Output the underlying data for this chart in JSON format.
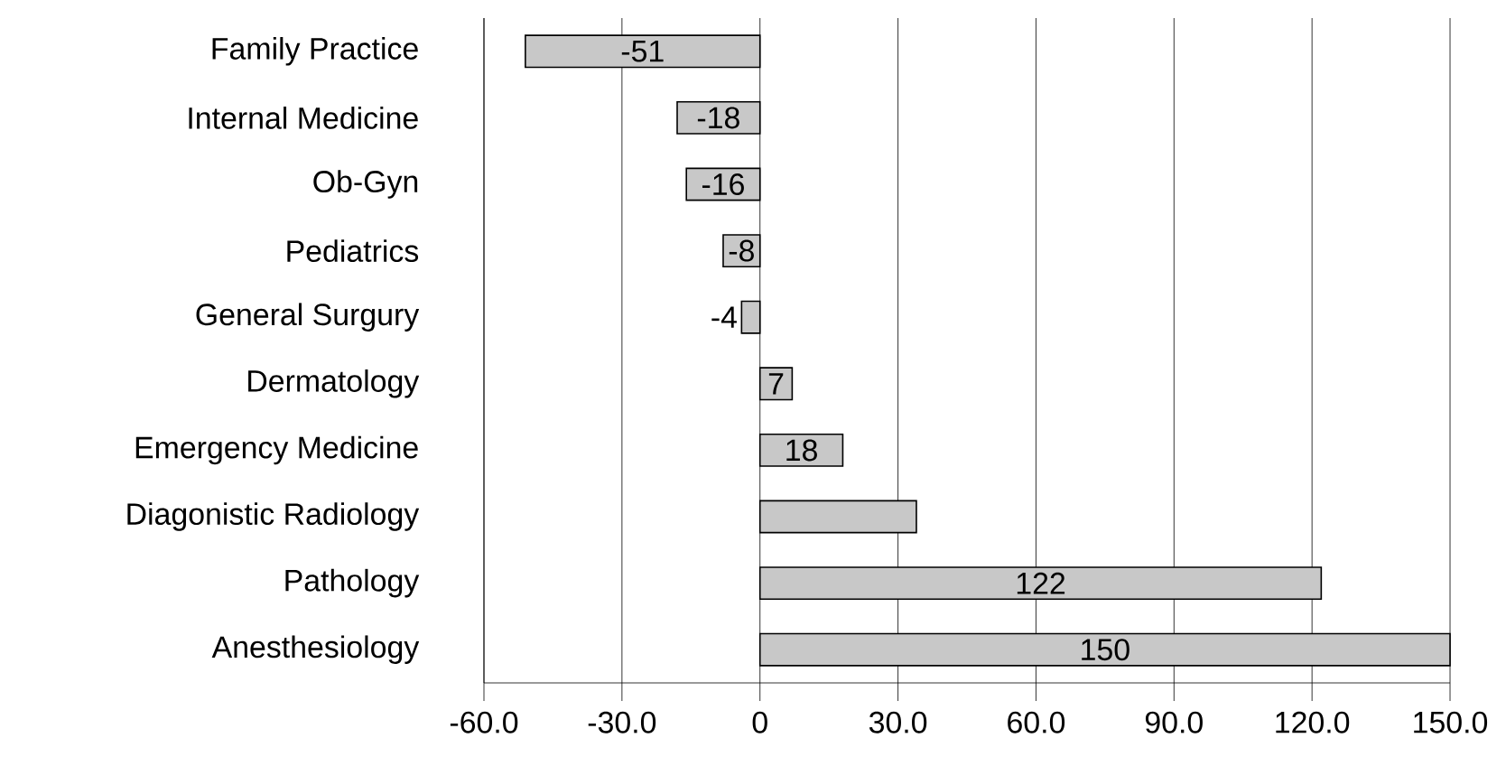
{
  "chart_data": {
    "type": "bar",
    "orientation": "horizontal",
    "categories": [
      "Family Practice",
      "Internal Medicine",
      "Ob-Gyn",
      "Pediatrics",
      "General Surgury",
      "Dermatology",
      "Emergency Medicine",
      "Diagonistic Radiology",
      "Pathology",
      "Anesthesiology"
    ],
    "values": [
      -51,
      -18,
      -16,
      -8,
      -4,
      7,
      18,
      34,
      122,
      150
    ],
    "value_labels": [
      "-51",
      "-18",
      "-16",
      "-8",
      "-4",
      "7",
      "18",
      null,
      "122",
      "150"
    ],
    "color": "#c8c8c8",
    "xlim": [
      -60,
      150
    ],
    "xticks": [
      {
        "value": -60,
        "label": "-60.0"
      },
      {
        "value": -30,
        "label": "-30.0"
      },
      0,
      {
        "value": 30,
        "label": "30.0"
      },
      {
        "value": 60,
        "label": "60.0"
      },
      {
        "value": 90,
        "label": "90.0"
      },
      {
        "value": 120,
        "label": "120.0"
      },
      {
        "value": 150,
        "label": "150.0"
      }
    ],
    "grid": "x"
  }
}
